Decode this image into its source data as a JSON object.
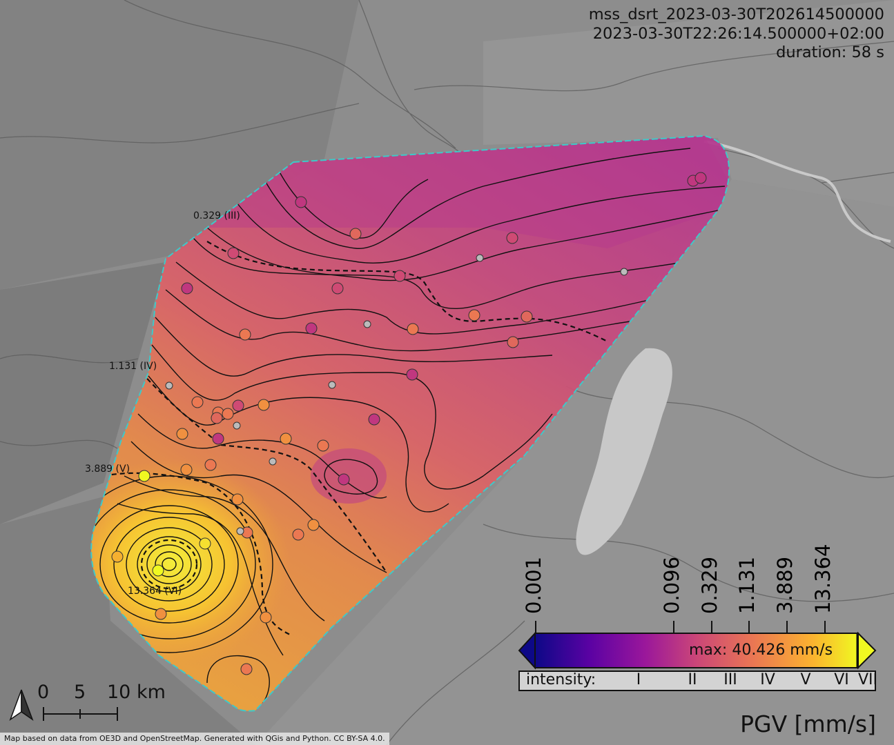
{
  "header": {
    "event_id": "mss_dsrt_2023-03-30T202614500000",
    "timestamp": "2023-03-30T22:26:14.500000+02:00",
    "duration": "duration: 58 s"
  },
  "contour_labels": [
    {
      "text": "0.329 (III)"
    },
    {
      "text": "1.131 (IV)"
    },
    {
      "text": "3.889 (V)"
    },
    {
      "text": "13.364 (VI)"
    }
  ],
  "colorbar": {
    "ticks": [
      "0.001",
      "0.096",
      "0.329",
      "1.131",
      "3.889",
      "13.364"
    ],
    "max_label": "max: 40.426 mm/s",
    "unit_label": "PGV [mm/s]",
    "colors": [
      "#0d0887",
      "#5b02a3",
      "#9a179b",
      "#cb4678",
      "#eb7852",
      "#fbb32f",
      "#f0f921"
    ]
  },
  "intensity": {
    "label": "intensity:",
    "classes": [
      "I",
      "II",
      "III",
      "IV",
      "V",
      "VI",
      "VII"
    ]
  },
  "scalebar": {
    "labels": [
      "0",
      "5",
      "10 km"
    ]
  },
  "north_arrow": {
    "icon": "north-arrow-icon"
  },
  "credit": "Map based on data from OE3D and OpenStreetMap. Generated with QGis and Python. CC BY-SA 4.0.",
  "palette": {
    "region_outline": "#3ec9c9",
    "background": "#8d8d8d",
    "lake": "#c8c8c8"
  }
}
